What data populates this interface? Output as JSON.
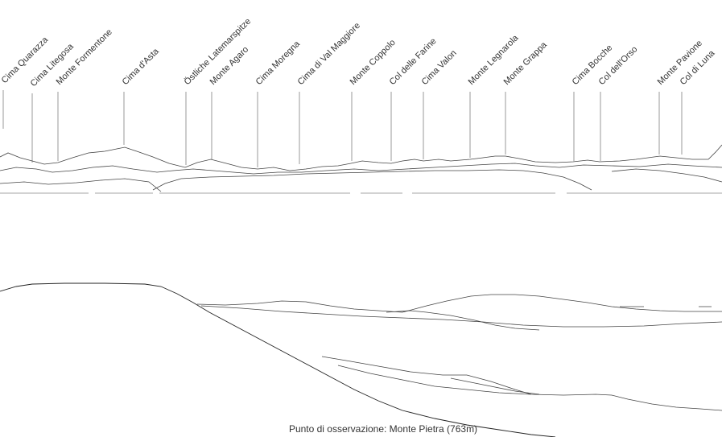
{
  "caption": "Punto di osservazione: Monte Pietra (763m)",
  "peaks": [
    {
      "name": "Cima Quarazza"
    },
    {
      "name": "Cima Litegosa"
    },
    {
      "name": "Monte Formentone"
    },
    {
      "name": "Cima d'Asta"
    },
    {
      "name": "Östliche Latemarspitze"
    },
    {
      "name": "Monte Agaro"
    },
    {
      "name": "Cima Moregna"
    },
    {
      "name": "Cima di Val Maggiore"
    },
    {
      "name": "Monte Coppolo"
    },
    {
      "name": "Col delle Farine"
    },
    {
      "name": "Cima Valon"
    },
    {
      "name": "Monte Legnarola"
    },
    {
      "name": "Monte Grappa"
    },
    {
      "name": "Cima Bocche"
    },
    {
      "name": "Col dell'Orso"
    },
    {
      "name": "Monte Pavione"
    },
    {
      "name": "Col di Luna"
    }
  ],
  "colors": {
    "lines": "#444444",
    "text": "#333333"
  }
}
